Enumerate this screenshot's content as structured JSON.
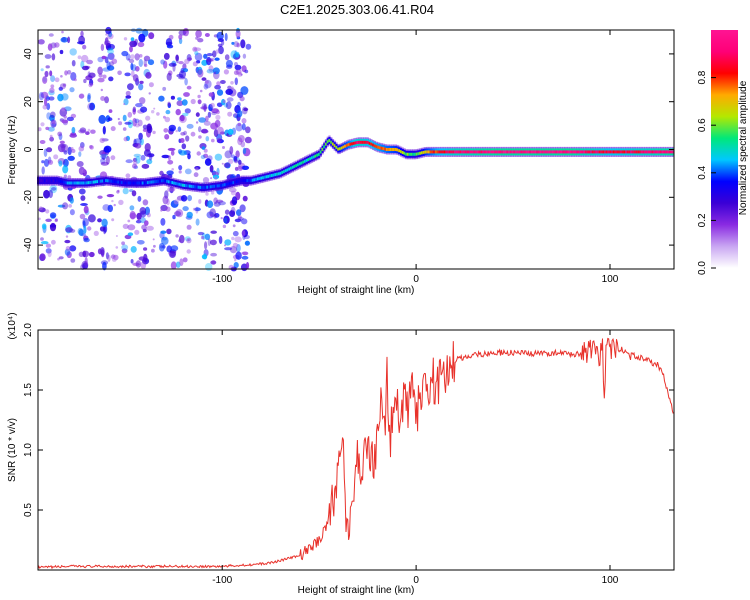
{
  "title": "C2E1.2025.303.06.41.R04",
  "chart_data": [
    {
      "type": "heatmap",
      "name": "spectrogram",
      "xlabel": "Height of straight line (km)",
      "ylabel": "Frequency (Hz)",
      "xlim": [
        -195,
        133
      ],
      "ylim": [
        -50,
        50
      ],
      "xticks": [
        "-100",
        "0",
        "100"
      ],
      "xtick_values": [
        -100,
        0,
        100
      ],
      "yticks": [
        "40",
        "20",
        "0",
        "-20",
        "-40"
      ],
      "ytick_values": [
        40,
        20,
        0,
        -20,
        -40
      ],
      "colorbar": {
        "label": "Normalized spectral amplitude",
        "range": [
          0,
          1
        ],
        "ticks": [
          "0.0",
          "0.2",
          "0.4",
          "0.6",
          "0.8"
        ],
        "tick_values": [
          0.0,
          0.2,
          0.4,
          0.6,
          0.8
        ],
        "colors": [
          "#ffffff",
          "#c9a6f2",
          "#8a2be2",
          "#3b00d6",
          "#0000ff",
          "#00c8ff",
          "#00e87a",
          "#b4e800",
          "#ffaa00",
          "#ff0000",
          "#ff0077",
          "#ff1493"
        ]
      },
      "ridge": {
        "height_km": [
          -195,
          -185,
          -180,
          -170,
          -160,
          -150,
          -140,
          -130,
          -120,
          -110,
          -100,
          -90,
          -85,
          -80,
          -75,
          -70,
          -65,
          -60,
          -55,
          -50,
          -45,
          -40,
          -35,
          -30,
          -25,
          -20,
          -15,
          -10,
          -5,
          0,
          5,
          10,
          20,
          40,
          60,
          80,
          100,
          120,
          133
        ],
        "frequency_hz": [
          -13,
          -13,
          -14,
          -14,
          -13,
          -14,
          -14,
          -13,
          -15,
          -16,
          -15,
          -13,
          -13,
          -12,
          -11,
          -10,
          -8,
          -6,
          -4,
          -2,
          4,
          0,
          2,
          3,
          3,
          1,
          0,
          0,
          -2,
          -2,
          -1,
          -1,
          -1,
          -1,
          -1,
          -1,
          -1,
          -1,
          -1
        ],
        "amplitude": [
          0.3,
          0.3,
          0.4,
          0.45,
          0.4,
          0.35,
          0.4,
          0.4,
          0.45,
          0.4,
          0.4,
          0.35,
          0.4,
          0.45,
          0.45,
          0.5,
          0.5,
          0.5,
          0.5,
          0.55,
          0.6,
          0.65,
          0.75,
          0.9,
          0.85,
          0.8,
          0.75,
          0.7,
          0.6,
          0.55,
          0.7,
          0.8,
          0.9,
          0.95,
          0.95,
          0.95,
          0.85,
          0.9,
          0.95
        ]
      },
      "noise_columns_km": [
        -190,
        -180,
        -170,
        -160,
        -147,
        -140,
        -128,
        -120,
        -110,
        -103,
        -95,
        -90
      ]
    },
    {
      "type": "line",
      "name": "snr",
      "xlabel": "Height of straight line (km)",
      "ylabel": "SNR (10 * v/v)",
      "multiplier": "(x10⁴)",
      "xlim": [
        -195,
        133
      ],
      "ylim": [
        0,
        2.0
      ],
      "xticks": [
        "-100",
        "0",
        "100"
      ],
      "xtick_values": [
        -100,
        0,
        100
      ],
      "yticks": [
        "2.0",
        "1.5",
        "1.0",
        "0.5"
      ],
      "ytick_values": [
        2.0,
        1.5,
        1.0,
        0.5
      ],
      "color": "#e8322b",
      "series": [
        {
          "name": "SNR",
          "x": [
            -195,
            -180,
            -160,
            -140,
            -120,
            -105,
            -100,
            -90,
            -80,
            -75,
            -70,
            -65,
            -60,
            -55,
            -50,
            -47,
            -45,
            -42,
            -40,
            -38,
            -37,
            -36,
            -35,
            -34,
            -32,
            -30,
            -28,
            -25,
            -22,
            -20,
            -18,
            -16,
            -15,
            -14,
            -12,
            -10,
            -8,
            -6,
            -4,
            -2,
            0,
            2,
            4,
            6,
            8,
            10,
            12,
            14,
            16,
            18,
            20,
            25,
            30,
            35,
            40,
            50,
            60,
            70,
            80,
            85,
            90,
            93,
            95,
            96,
            97,
            98,
            100,
            105,
            110,
            115,
            120,
            125,
            128,
            130,
            133
          ],
          "y": [
            0.02,
            0.03,
            0.03,
            0.03,
            0.03,
            0.03,
            0.03,
            0.04,
            0.05,
            0.06,
            0.08,
            0.1,
            0.12,
            0.18,
            0.25,
            0.35,
            0.45,
            0.6,
            0.9,
            1.25,
            0.75,
            0.4,
            0.2,
            0.35,
            0.7,
            0.95,
            0.85,
            1.05,
            0.9,
            1.1,
            1.4,
            1.15,
            1.8,
            1.0,
            1.3,
            1.4,
            1.2,
            1.45,
            1.35,
            1.5,
            1.25,
            1.45,
            1.55,
            1.35,
            1.7,
            1.45,
            1.58,
            1.65,
            1.62,
            1.7,
            1.75,
            1.77,
            1.8,
            1.8,
            1.81,
            1.81,
            1.8,
            1.81,
            1.8,
            1.8,
            1.82,
            1.8,
            1.75,
            1.95,
            1.35,
            1.95,
            1.85,
            1.85,
            1.78,
            1.78,
            1.75,
            1.7,
            1.6,
            1.45,
            1.3
          ]
        }
      ]
    }
  ]
}
